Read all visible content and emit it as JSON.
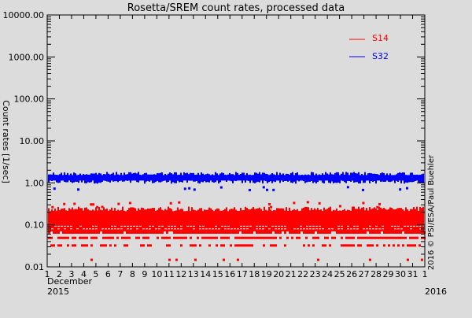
{
  "chart_data": {
    "type": "scatter",
    "title": "Rosetta/SREM count rates, processed data",
    "xlabel": "December 2015",
    "ylabel": "Count rates [1/sec]",
    "yscale": "log",
    "ylim": [
      0.01,
      10000
    ],
    "y_ticks": [
      "10000.00",
      "1000.00",
      "100.00",
      "10.00",
      "1.00",
      "0.10",
      "0.01"
    ],
    "x_ticks": [
      "1",
      "2",
      "3",
      "4",
      "5",
      "6",
      "7",
      "8",
      "9",
      "10",
      "11",
      "12",
      "13",
      "14",
      "15",
      "16",
      "17",
      "18",
      "19",
      "20",
      "21",
      "22",
      "23",
      "24",
      "25",
      "26",
      "27",
      "28",
      "29",
      "30",
      "31",
      "1"
    ],
    "x_month_label": "December",
    "x_year_start": "2015",
    "x_year_end": "2016",
    "credit": "2016 © PSI/ESA/Paul Buehler",
    "grid": false,
    "legend_position": "upper right",
    "series": [
      {
        "name": "S14",
        "color": "#ff0000",
        "description": "dense band from ~0.07 to ~0.25 with discrete quantized rows near 0.07, 0.05, 0.033, and occasional points at 0.015",
        "typical_range": [
          0.06,
          0.28
        ],
        "quantized_levels": [
          0.067,
          0.05,
          0.033,
          0.015
        ]
      },
      {
        "name": "S32",
        "color": "#0000ff",
        "description": "dense band centred near 1.3 counts/s, ranging ~1.0 to ~1.8, occasional outliers near 0.7-0.8",
        "typical_range": [
          1.0,
          1.8
        ],
        "center": 1.3
      }
    ]
  }
}
